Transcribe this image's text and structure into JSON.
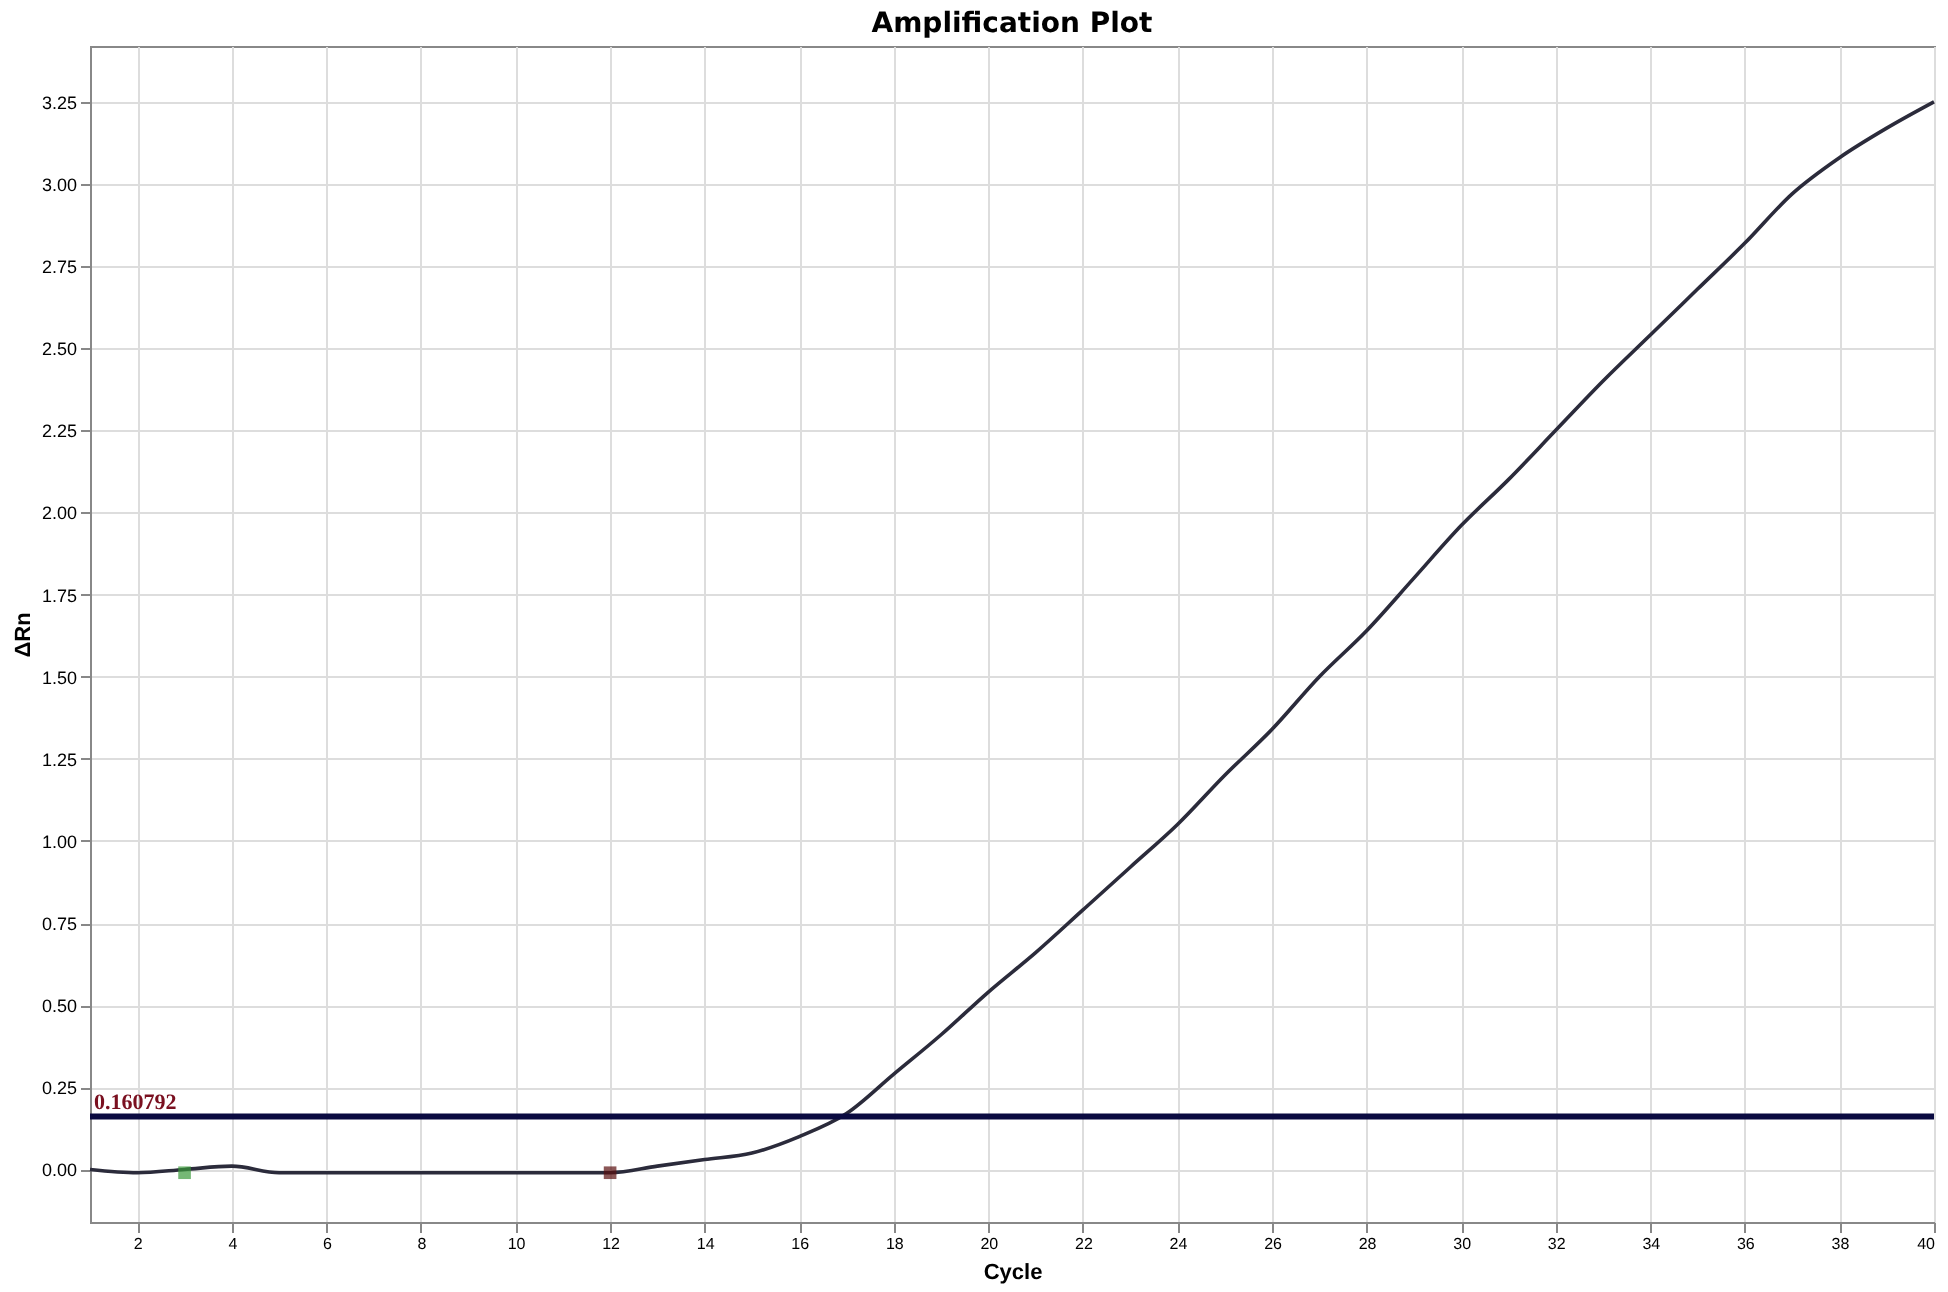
{
  "chart_data": {
    "type": "line",
    "title": "Amplification Plot",
    "xlabel": "Cycle",
    "ylabel": "ΔRn",
    "x": [
      1,
      2,
      3,
      4,
      5,
      6,
      7,
      8,
      9,
      10,
      11,
      12,
      13,
      14,
      15,
      16,
      17,
      18,
      19,
      20,
      21,
      22,
      23,
      24,
      25,
      26,
      27,
      28,
      29,
      30,
      31,
      32,
      33,
      34,
      35,
      36,
      37,
      38,
      39,
      40
    ],
    "series": [
      {
        "color": "#2b2b3b",
        "values": [
          0.0,
          -0.01,
          0.0,
          0.01,
          -0.01,
          -0.01,
          -0.01,
          -0.01,
          -0.01,
          -0.01,
          -0.01,
          -0.01,
          0.01,
          0.03,
          0.05,
          0.1,
          0.17,
          0.29,
          0.41,
          0.54,
          0.66,
          0.79,
          0.92,
          1.05,
          1.2,
          1.34,
          1.5,
          1.64,
          1.8,
          1.96,
          2.1,
          2.25,
          2.4,
          2.54,
          2.68,
          2.82,
          2.97,
          3.08,
          3.17,
          3.25
        ]
      },
      {
        "type": "scatter",
        "marker": "square",
        "x": [
          3,
          12
        ],
        "colors": [
          "#3a9a3a",
          "#5a1010"
        ],
        "values": [
          -0.01,
          -0.01
        ]
      }
    ],
    "ref_lines": [
      {
        "axis": "y",
        "value": 0.160792,
        "label": "0.160792",
        "color": "#0a0a40"
      }
    ],
    "xlim": [
      1,
      40
    ],
    "ylim": [
      -0.16,
      3.42
    ],
    "xticks": [
      2,
      4,
      6,
      8,
      10,
      12,
      14,
      16,
      18,
      20,
      22,
      24,
      26,
      28,
      30,
      32,
      34,
      36,
      38,
      40
    ],
    "yticks": [
      {
        "value": 0,
        "label": "0.00"
      },
      {
        "value": 0.25,
        "label": "0.25"
      },
      {
        "value": 0.5,
        "label": "0.50"
      },
      {
        "value": 0.75,
        "label": "0.75"
      },
      {
        "value": 1,
        "label": "1.00"
      },
      {
        "value": 1.25,
        "label": "1.25"
      },
      {
        "value": 1.5,
        "label": "1.50"
      },
      {
        "value": 1.75,
        "label": "1.75"
      },
      {
        "value": 2,
        "label": "2.00"
      },
      {
        "value": 2.25,
        "label": "2.25"
      },
      {
        "value": 2.5,
        "label": "2.50"
      },
      {
        "value": 2.75,
        "label": "2.75"
      },
      {
        "value": 3,
        "label": "3.00"
      },
      {
        "value": 3.25,
        "label": "3.25"
      }
    ],
    "grid": true,
    "legend": false,
    "marker": "none",
    "line_style": "solid"
  }
}
